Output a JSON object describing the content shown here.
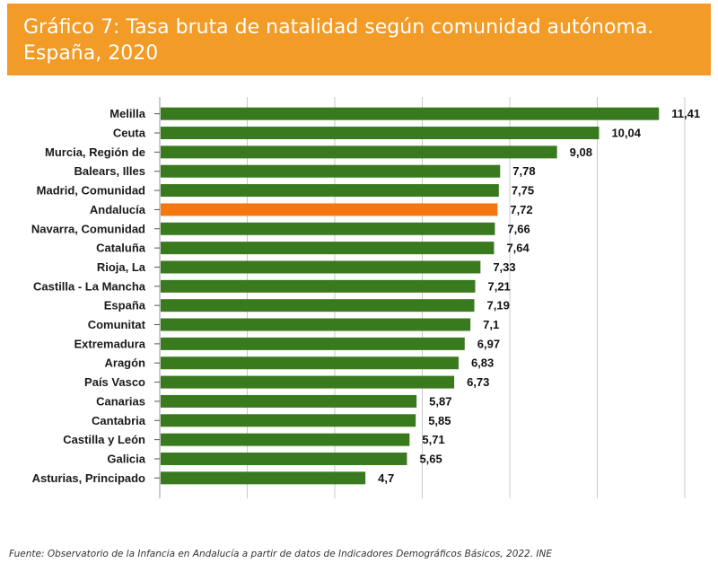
{
  "header": {
    "title": "Gráfico 7: Tasa bruta de natalidad según comunidad autónoma. España, 2020"
  },
  "footer": {
    "source": "Fuente: Observatorio de la Infancia en Andalucía a partir de datos de Indicadores Demográficos Básicos, 2022. INE"
  },
  "colors": {
    "header_bg": "#f29b26",
    "bar": "#3a7a1f",
    "highlight_bar": "#f4770f",
    "grid": "#c8c8c8"
  },
  "chart_data": {
    "type": "bar",
    "orientation": "horizontal",
    "title": "Gráfico 7: Tasa bruta de natalidad según comunidad autónoma. España, 2020",
    "xlabel": "",
    "ylabel": "",
    "xlim": [
      0,
      12
    ],
    "grid": true,
    "highlight": "Andalucía",
    "categories": [
      "Melilla",
      "Ceuta",
      "Murcia, Región de",
      "Balears, Illes",
      "Madrid, Comunidad",
      "Andalucía",
      "Navarra, Comunidad",
      "Cataluña",
      "Rioja, La",
      "Castilla - La Mancha",
      "España",
      "Comunitat",
      "Extremadura",
      "Aragón",
      "País Vasco",
      "Canarias",
      "Cantabria",
      "Castilla y León",
      "Galicia",
      "Asturias, Principado"
    ],
    "values": [
      11.41,
      10.04,
      9.08,
      7.78,
      7.75,
      7.72,
      7.66,
      7.64,
      7.33,
      7.21,
      7.19,
      7.1,
      6.97,
      6.83,
      6.73,
      5.87,
      5.85,
      5.71,
      5.65,
      4.7
    ],
    "value_labels": [
      "11,41",
      "10,04",
      "9,08",
      "7,78",
      "7,75",
      "7,72",
      "7,66",
      "7,64",
      "7,33",
      "7,21",
      "7,19",
      "7,1",
      "6,97",
      "6,83",
      "6,73",
      "5,87",
      "5,85",
      "5,71",
      "5,65",
      "4,7"
    ]
  }
}
